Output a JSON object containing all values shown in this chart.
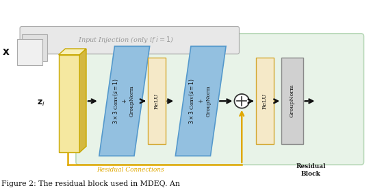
{
  "title": "Figure 2: The residual block used in MDEQ. An",
  "background_color": "#ffffff",
  "green_bg": "#e8f3e8",
  "green_edge": "#b8d8b8",
  "blue_color": "#93c0e0",
  "blue_edge": "#5599cc",
  "yellow_color": "#f5e9c8",
  "yellow_edge": "#d4a832",
  "gray_color": "#d0d0d0",
  "gray_edge": "#888888",
  "orange_color": "#e0a800",
  "gray_inj_bg": "#e8e8e8",
  "gray_inj_edge": "#aaaaaa",
  "input_injection_text": "Input Injection (only if $i=1$)",
  "residual_connections_text": "Residual Connections",
  "conv1_text": "$3 \\times 3$ Conv$(s=1)$\n$+$\nGroupNorm",
  "relu1_text": "ReLU",
  "conv2_text": "$3 \\times 3$ Conv$(s=1)$\n$+$\nGroupNorm",
  "relu2_text": "ReLU",
  "groupnorm_text": "GroupNorm",
  "residual_block_text": "Residual\nBlock",
  "x_label": "$\\mathbf{x}$",
  "z_label": "$\\mathbf{z}_i$"
}
